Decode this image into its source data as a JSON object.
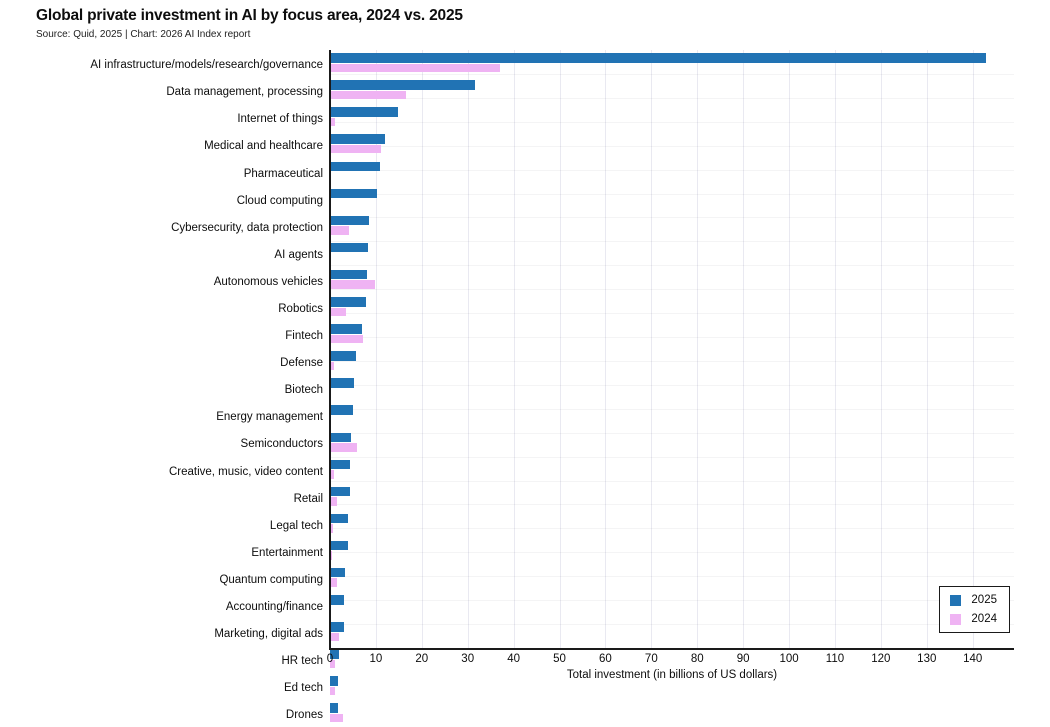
{
  "header": {
    "title": "Global private investment in AI by focus area, 2024 vs. 2025",
    "subtitle": "Source: Quid, 2025 | Chart: 2026 AI Index report"
  },
  "chart_data": {
    "type": "bar",
    "orientation": "horizontal",
    "title": "Global private investment in AI by focus area, 2024 vs. 2025",
    "xlabel": "Total investment (in billions of US dollars)",
    "xlim": [
      0,
      149
    ],
    "xticks": [
      0,
      10,
      20,
      30,
      40,
      50,
      60,
      70,
      80,
      90,
      100,
      110,
      120,
      130,
      140
    ],
    "grid": true,
    "legend_position": "bottom-right",
    "categories": [
      "AI infrastructure/models/research/governance",
      "Data management, processing",
      "Internet of things",
      "Medical and healthcare",
      "Pharmaceutical",
      "Cloud computing",
      "Cybersecurity, data protection",
      "AI agents",
      "Autonomous vehicles",
      "Robotics",
      "Fintech",
      "Defense",
      "Biotech",
      "Energy management",
      "Semiconductors",
      "Creative, music, video content",
      "Retail",
      "Legal tech",
      "Entertainment",
      "Quantum computing",
      "Accounting/finance",
      "Marketing, digital ads",
      "HR tech",
      "Ed tech",
      "Drones"
    ],
    "series": [
      {
        "name": "2025",
        "color": "#2173b4",
        "values": [
          143,
          31.5,
          14.8,
          11.9,
          10.8,
          10.3,
          8.6,
          8.2,
          8.1,
          7.9,
          6.9,
          5.6,
          5.2,
          5.0,
          4.5,
          4.4,
          4.3,
          4.0,
          3.9,
          3.2,
          3.0,
          3.0,
          2.0,
          1.7,
          1.7
        ]
      },
      {
        "name": "2024",
        "color": "#efb3f3",
        "values": [
          37,
          16.5,
          1.0,
          11.1,
          0.2,
          0.2,
          4.2,
          0.2,
          9.7,
          3.4,
          7.2,
          0.8,
          0.2,
          0.2,
          5.8,
          0.8,
          1.5,
          0.6,
          0.4,
          1.5,
          0.3,
          1.9,
          1.0,
          1.0,
          2.8
        ]
      }
    ]
  },
  "colors": {
    "axis": "#1a1a1a",
    "grid": "#e9e9f1",
    "background": "#ffffff"
  }
}
